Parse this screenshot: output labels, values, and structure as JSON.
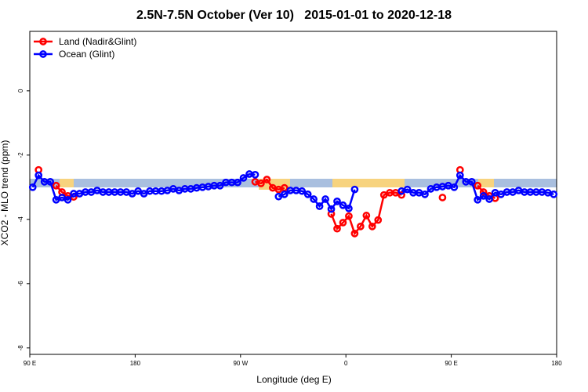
{
  "chart_data": {
    "type": "line",
    "title": "2.5N-7.5N October (Ver 10)   2015-01-01 to 2020-12-18",
    "x_label": "Longitude (deg E)",
    "y_label": "XCO2 - MLO trend (ppm)",
    "x": [
      92.5,
      97.5,
      102.5,
      107.5,
      112.5,
      117.5,
      122.5,
      127.5,
      132.5,
      137.5,
      142.5,
      147.5,
      152.5,
      157.5,
      162.5,
      167.5,
      172.5,
      177.5,
      182.5,
      187.5,
      192.5,
      197.5,
      202.5,
      207.5,
      212.5,
      217.5,
      222.5,
      227.5,
      232.5,
      237.5,
      242.5,
      247.5,
      252.5,
      257.5,
      262.5,
      267.5,
      272.5,
      277.5,
      282.5,
      287.5,
      292.5,
      297.5,
      302.5,
      307.5,
      312.5,
      317.5,
      322.5,
      327.5,
      332.5,
      337.5,
      342.5,
      347.5,
      352.5,
      357.5,
      362.5,
      367.5,
      372.5,
      377.5,
      382.5,
      387.5,
      392.5,
      397.5,
      402.5,
      407.5,
      412.5,
      417.5,
      422.5,
      427.5,
      432.5,
      437.5,
      442.5,
      447.5,
      452.5,
      457.5,
      462.5,
      467.5,
      472.5,
      477.5,
      482.5,
      487.5,
      492.5,
      497.5,
      502.5,
      507.5,
      512.5,
      517.5,
      522.5,
      527.5,
      532.5,
      537.5
    ],
    "series": [
      {
        "name": "Land (Nadir&Glint)",
        "color": "#ff0000",
        "values": [
          null,
          -2.46,
          null,
          null,
          -2.95,
          -3.15,
          -3.27,
          -3.3,
          null,
          null,
          null,
          null,
          null,
          null,
          null,
          null,
          null,
          null,
          null,
          null,
          null,
          null,
          null,
          null,
          null,
          null,
          null,
          null,
          null,
          null,
          null,
          null,
          null,
          null,
          null,
          null,
          null,
          null,
          -2.83,
          -2.88,
          -2.76,
          -3.02,
          -3.07,
          -3.02,
          null,
          null,
          null,
          null,
          null,
          null,
          null,
          -3.83,
          -4.29,
          -4.1,
          -3.9,
          -4.44,
          -4.22,
          -3.88,
          -4.22,
          -4.02,
          -3.24,
          -3.17,
          -3.17,
          -3.24,
          null,
          null,
          null,
          null,
          null,
          null,
          -3.32,
          null,
          null,
          -2.46,
          null,
          null,
          -2.95,
          -3.15,
          -3.27,
          -3.34,
          null,
          null,
          null,
          null,
          null,
          null,
          null,
          null,
          null,
          null
        ]
      },
      {
        "name": "Ocean (Glint)",
        "color": "#0000ff",
        "values": [
          -3.0,
          -2.63,
          -2.83,
          -2.83,
          -3.39,
          -3.32,
          -3.39,
          -3.2,
          -3.2,
          -3.15,
          -3.15,
          -3.1,
          -3.15,
          -3.15,
          -3.15,
          -3.15,
          -3.15,
          -3.2,
          -3.12,
          -3.2,
          -3.12,
          -3.12,
          -3.12,
          -3.1,
          -3.05,
          -3.1,
          -3.05,
          -3.05,
          -3.02,
          -3.0,
          -2.98,
          -2.95,
          -2.95,
          -2.85,
          -2.85,
          -2.85,
          -2.71,
          -2.59,
          -2.61,
          null,
          null,
          null,
          -3.29,
          -3.22,
          -3.1,
          -3.1,
          -3.12,
          -3.22,
          -3.37,
          -3.59,
          -3.37,
          -3.68,
          -3.44,
          -3.56,
          -3.66,
          -3.07,
          null,
          null,
          null,
          null,
          null,
          null,
          null,
          -3.12,
          -3.07,
          -3.17,
          -3.17,
          -3.22,
          -3.05,
          -3.0,
          -2.98,
          -2.95,
          -3.0,
          -2.63,
          -2.83,
          -2.83,
          -3.39,
          -3.27,
          -3.37,
          -3.17,
          -3.22,
          -3.15,
          -3.15,
          -3.1,
          -3.15,
          -3.15,
          -3.15,
          -3.15,
          -3.17,
          -3.22
        ]
      }
    ],
    "xlim": [
      90,
      540
    ],
    "xticks": [
      {
        "value": 90,
        "label": "90 E"
      },
      {
        "value": 180,
        "label": "180"
      },
      {
        "value": 270,
        "label": "90 W"
      },
      {
        "value": 360,
        "label": "0"
      },
      {
        "value": 450,
        "label": "90 E"
      },
      {
        "value": 540,
        "label": "180"
      }
    ],
    "ylim": [
      -8.2,
      1.85
    ],
    "yticks": [
      0,
      -2,
      -4,
      -6,
      -8
    ],
    "legend": "top-left"
  }
}
